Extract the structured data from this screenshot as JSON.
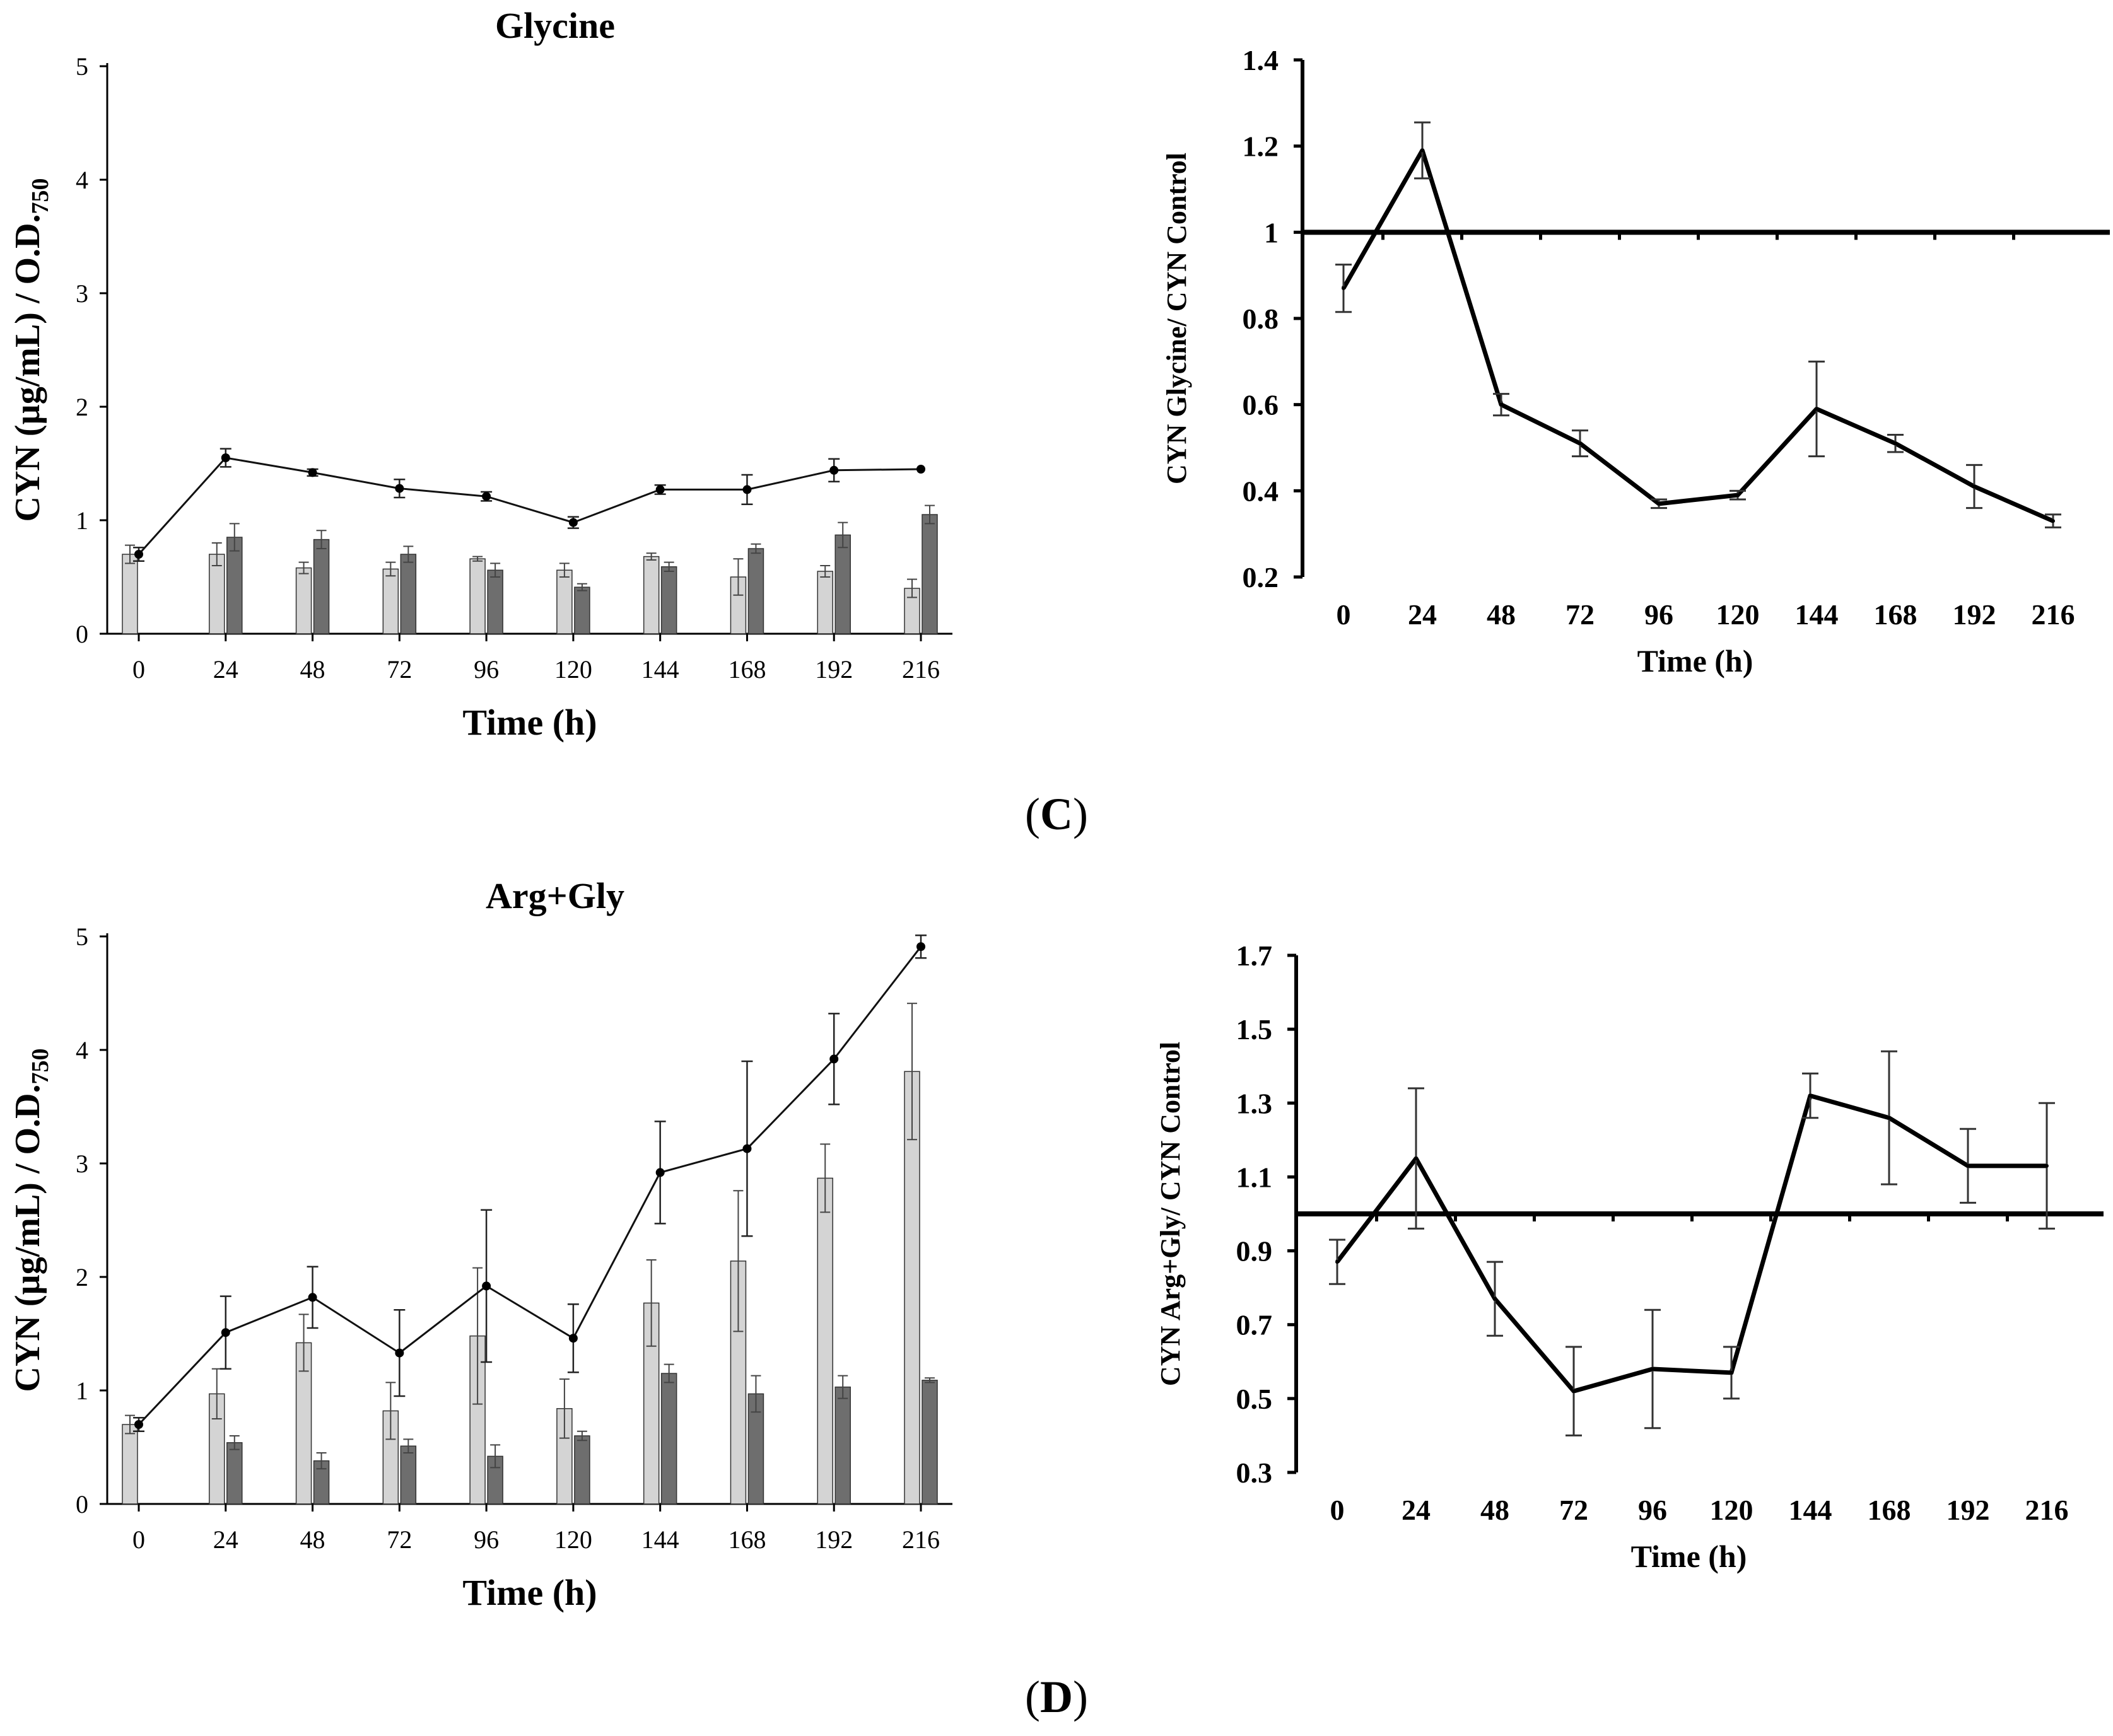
{
  "panel_labels": {
    "c": "C",
    "d": "D"
  },
  "chart_data": [
    {
      "id": "glycine-bars",
      "type": "bar",
      "title": "Glycine",
      "xlabel": "Time (h)",
      "ylabel": "CYN (µg/mL) / O.D.",
      "ylabel_sub": "750",
      "ylim": [
        0,
        5
      ],
      "yticks": [
        "0",
        "1",
        "2",
        "3",
        "4",
        "5"
      ],
      "categories": [
        "0",
        "24",
        "48",
        "72",
        "96",
        "120",
        "144",
        "168",
        "192",
        "216"
      ],
      "series": [
        {
          "name": "light bars",
          "color": "#d4d4d4",
          "values": [
            0.7,
            0.7,
            0.58,
            0.57,
            0.66,
            0.56,
            0.68,
            0.5,
            0.55,
            0.4
          ],
          "errors": [
            0.08,
            0.1,
            0.05,
            0.06,
            0.02,
            0.06,
            0.03,
            0.16,
            0.05,
            0.08
          ]
        },
        {
          "name": "dark bars",
          "color": "#6e6e6e",
          "values": [
            null,
            0.85,
            0.83,
            0.7,
            0.56,
            0.41,
            0.59,
            0.75,
            0.87,
            1.05
          ],
          "errors": [
            null,
            0.12,
            0.08,
            0.07,
            0.06,
            0.03,
            0.04,
            0.04,
            0.11,
            0.08
          ]
        }
      ],
      "line": {
        "name": "line",
        "values": [
          0.7,
          1.55,
          1.42,
          1.28,
          1.21,
          0.98,
          1.27,
          1.27,
          1.44,
          1.45
        ],
        "errors": [
          0.06,
          0.08,
          0.03,
          0.08,
          0.04,
          0.05,
          0.04,
          0.13,
          0.1,
          0.0
        ]
      }
    },
    {
      "id": "glycine-ratio",
      "type": "line",
      "title": "",
      "xlabel": "Time (h)",
      "ylabel": "CYN Glycine/ CYN Control",
      "ylim": [
        0.2,
        1.4
      ],
      "yticks": [
        "0.2",
        "0.4",
        "0.6",
        "0.8",
        "1",
        "1.2",
        "1.4"
      ],
      "reference_line": 1,
      "categories": [
        "0",
        "24",
        "48",
        "72",
        "96",
        "120",
        "144",
        "168",
        "192",
        "216"
      ],
      "values": [
        0.87,
        1.19,
        0.6,
        0.51,
        0.37,
        0.39,
        0.59,
        0.51,
        0.41,
        0.33
      ],
      "errors": [
        0.055,
        0.065,
        0.025,
        0.03,
        0.01,
        0.01,
        0.11,
        0.02,
        0.05,
        0.015
      ]
    },
    {
      "id": "arggly-bars",
      "type": "bar",
      "title": "Arg+Gly",
      "xlabel": "Time (h)",
      "ylabel": "CYN (µg/mL) / O.D.",
      "ylabel_sub": "750",
      "ylim": [
        0,
        5
      ],
      "yticks": [
        "0",
        "1",
        "2",
        "3",
        "4",
        "5"
      ],
      "categories": [
        "0",
        "24",
        "48",
        "72",
        "96",
        "120",
        "144",
        "168",
        "192",
        "216"
      ],
      "series": [
        {
          "name": "light bars",
          "color": "#d4d4d4",
          "values": [
            0.7,
            0.97,
            1.42,
            0.82,
            1.48,
            0.84,
            1.77,
            2.14,
            2.87,
            3.81
          ],
          "errors": [
            0.08,
            0.22,
            0.25,
            0.25,
            0.6,
            0.26,
            0.38,
            0.62,
            0.3,
            0.6
          ]
        },
        {
          "name": "dark bars",
          "color": "#6e6e6e",
          "values": [
            null,
            0.54,
            0.38,
            0.51,
            0.42,
            0.6,
            1.15,
            0.97,
            1.03,
            1.09
          ],
          "errors": [
            null,
            0.06,
            0.07,
            0.06,
            0.1,
            0.04,
            0.08,
            0.16,
            0.1,
            0.02
          ]
        }
      ],
      "line": {
        "name": "line",
        "values": [
          0.7,
          1.51,
          1.82,
          1.33,
          1.92,
          1.46,
          2.92,
          3.13,
          3.92,
          4.91
        ],
        "errors": [
          0.06,
          0.32,
          0.27,
          0.38,
          0.67,
          0.3,
          0.45,
          0.77,
          0.4,
          0.1
        ]
      }
    },
    {
      "id": "arggly-ratio",
      "type": "line",
      "title": "",
      "xlabel": "Time (h)",
      "ylabel": "CYN Arg+Gly/ CYN Control",
      "ylim": [
        0.3,
        1.7
      ],
      "yticks": [
        "0.3",
        "0.5",
        "0.7",
        "0.9",
        "1.1",
        "1.3",
        "1.5",
        "1.7"
      ],
      "reference_line": 1,
      "categories": [
        "0",
        "24",
        "48",
        "72",
        "96",
        "120",
        "144",
        "168",
        "192",
        "216"
      ],
      "values": [
        0.87,
        1.15,
        0.77,
        0.52,
        0.58,
        0.57,
        1.32,
        1.26,
        1.13,
        1.13
      ],
      "errors": [
        0.06,
        0.19,
        0.1,
        0.12,
        0.16,
        0.07,
        0.06,
        0.18,
        0.1,
        0.17
      ]
    }
  ]
}
